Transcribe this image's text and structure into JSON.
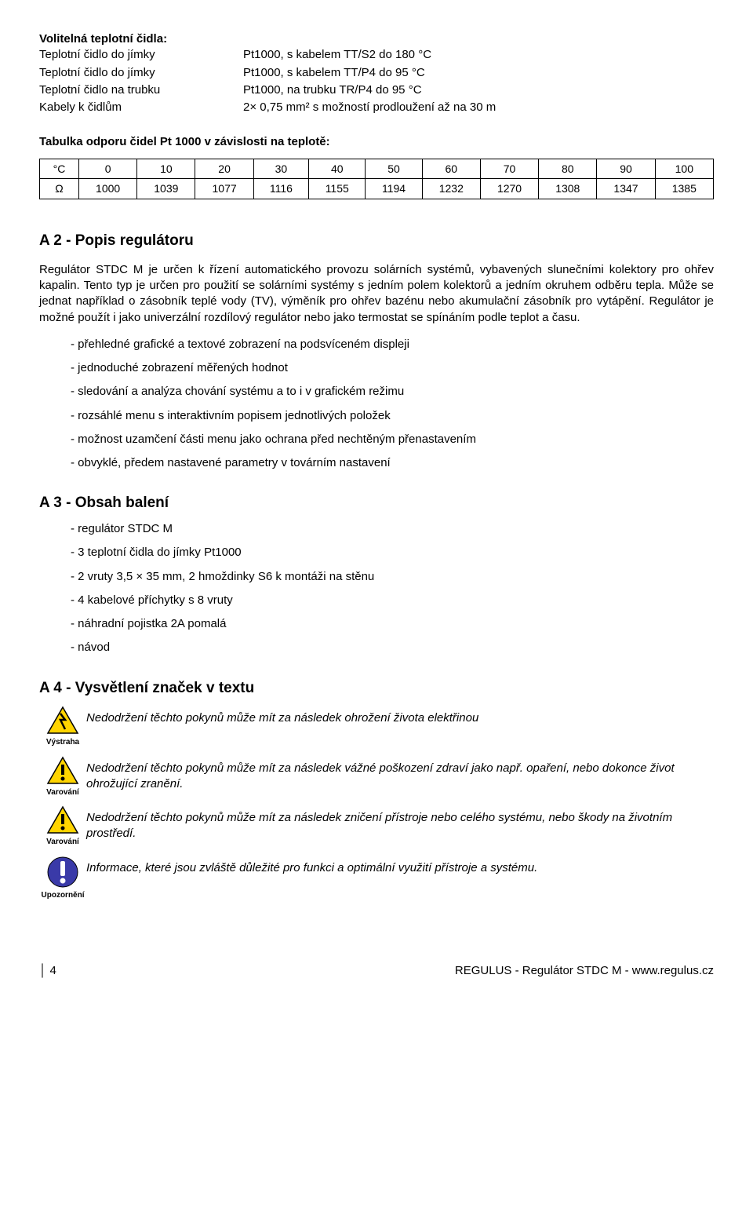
{
  "section_optional": {
    "title": "Volitelná teplotní čidla:",
    "rows": [
      {
        "label": "Teplotní čidlo do jímky",
        "value": "Pt1000, s kabelem TT/S2 do 180 °C"
      },
      {
        "label": "Teplotní čidlo do jímky",
        "value": "Pt1000, s kabelem TT/P4 do 95 °C"
      },
      {
        "label": "Teplotní čidlo na trubku",
        "value": "Pt1000, na trubku TR/P4 do 95 °C"
      },
      {
        "label": "Kabely k čidlům",
        "value": "2× 0,75 mm² s možností prodloužení až na 30 m"
      }
    ]
  },
  "resist_table": {
    "title": "Tabulka odporu čidel Pt 1000 v závislosti na teplotě:",
    "row1_label": "°C",
    "row1": [
      "0",
      "10",
      "20",
      "30",
      "40",
      "50",
      "60",
      "70",
      "80",
      "90",
      "100"
    ],
    "row2_label": "Ω",
    "row2": [
      "1000",
      "1039",
      "1077",
      "1116",
      "1155",
      "1194",
      "1232",
      "1270",
      "1308",
      "1347",
      "1385"
    ]
  },
  "a2": {
    "title": "A 2 - Popis regulátoru",
    "para": "Regulátor STDC M je určen k řízení automatického provozu solárních systémů, vybavených slunečními kolektory pro ohřev kapalin. Tento typ je určen pro použití se solárními systémy s jedním polem kolektorů a jedním okruhem odběru tepla. Může se jednat například o zásobník teplé vody (TV), výměník pro ohřev bazénu nebo akumulační zásobník pro vytápění. Regulátor je možné použít i jako univerzální rozdílový regulátor nebo jako termostat se spínáním podle teplot a času.",
    "bullets": [
      "přehledné grafické a textové zobrazení na podsvíceném displeji",
      "jednoduché zobrazení měřených hodnot",
      "sledování a analýza chování systému a to i v grafickém režimu",
      "rozsáhlé menu s interaktivním popisem jednotlivých položek",
      "možnost uzamčení části menu jako ochrana před nechtěným přenastavením",
      "obvyklé, předem nastavené parametry v továrním nastavení"
    ]
  },
  "a3": {
    "title": "A 3 - Obsah balení",
    "bullets": [
      "regulátor STDC M",
      "3 teplotní čidla do jímky Pt1000",
      "2 vruty 3,5 × 35 mm, 2 hmoždinky S6 k montáži na stěnu",
      "4 kabelové příchytky s 8 vruty",
      "náhradní pojistka 2A pomalá",
      "návod"
    ]
  },
  "a4": {
    "title": "A 4 - Vysvětlení značek v textu",
    "items": [
      {
        "icon": "bolt",
        "caption": "Výstraha",
        "text": "Nedodržení těchto pokynů může mít za následek ohrožení života elektřinou"
      },
      {
        "icon": "excl",
        "caption": "Varování",
        "text": "Nedodržení těchto pokynů může mít za následek vážné poškození zdraví jako např. opaření, nebo dokonce život ohrožující zranění."
      },
      {
        "icon": "excl",
        "caption": "Varování",
        "text": "Nedodržení těchto pokynů může mít za následek zničení přístroje nebo celého systému, nebo škody na životním prostředí."
      },
      {
        "icon": "info",
        "caption": "Upozornění",
        "text": "Informace, které jsou zvláště důležité pro funkci a optimální využití přístroje a systému."
      }
    ]
  },
  "footer": {
    "left": "│ 4",
    "right": "REGULUS - Regulátor STDC M - www.regulus.cz"
  }
}
